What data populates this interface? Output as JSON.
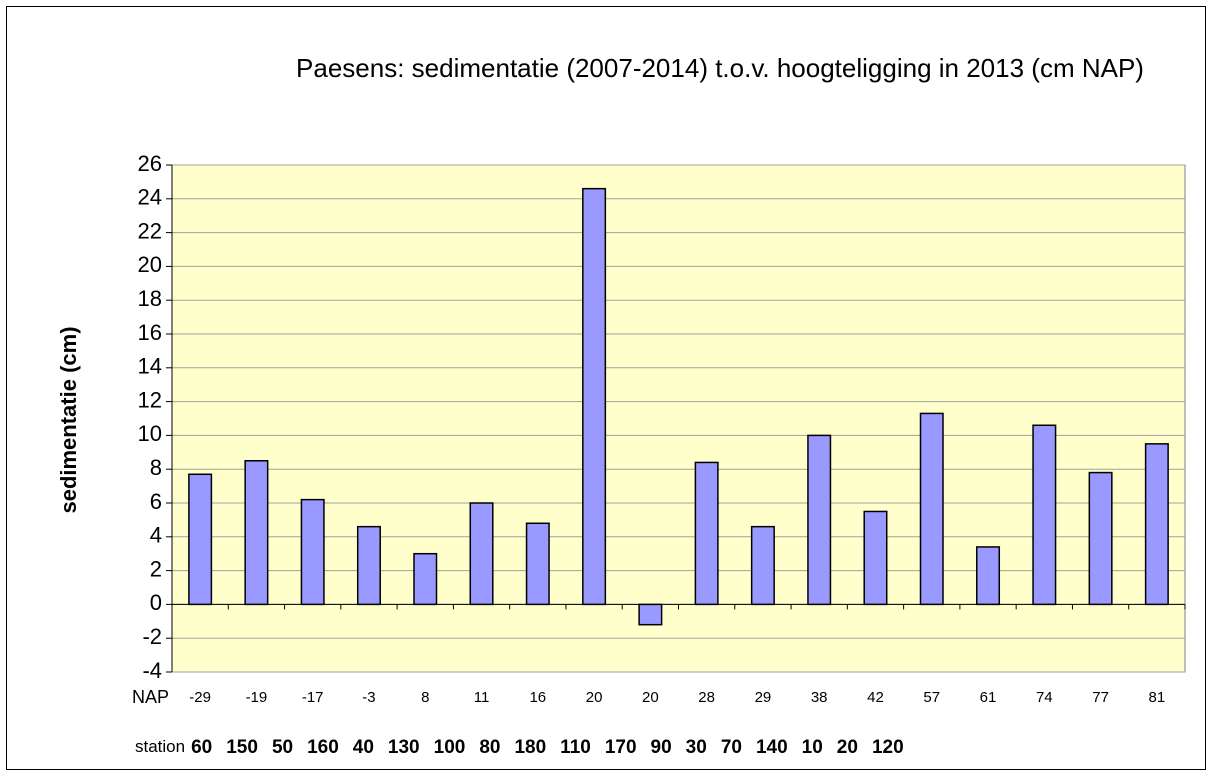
{
  "chart_data": {
    "type": "bar",
    "title": "Paesens: sedimentatie (2007-2014) t.o.v. hoogteligging in 2013 (cm NAP)",
    "y_label": "sedimentatie (cm)",
    "category_label": "NAP",
    "categories": [
      "-29",
      "-19",
      "-17",
      "-3",
      "8",
      "11",
      "16",
      "20",
      "20",
      "28",
      "29",
      "38",
      "42",
      "57",
      "61",
      "74",
      "77",
      "81"
    ],
    "station_label": "station",
    "stations": [
      "60",
      "150",
      "50",
      "160",
      "40",
      "130",
      "100",
      "80",
      "180",
      "110",
      "170",
      "90",
      "30",
      "70",
      "140",
      "10",
      "20",
      "120"
    ],
    "values": [
      7.7,
      8.5,
      6.2,
      4.6,
      3.0,
      6.0,
      4.8,
      24.6,
      -1.2,
      8.4,
      4.6,
      10.0,
      5.5,
      11.3,
      3.4,
      10.6,
      7.8,
      9.5
    ],
    "color": "#9999ff",
    "ylim": [
      -4,
      26
    ],
    "yticks": [
      -4,
      -2,
      0,
      2,
      4,
      6,
      8,
      10,
      12,
      14,
      16,
      18,
      20,
      22,
      24,
      26
    ],
    "grid": true
  }
}
